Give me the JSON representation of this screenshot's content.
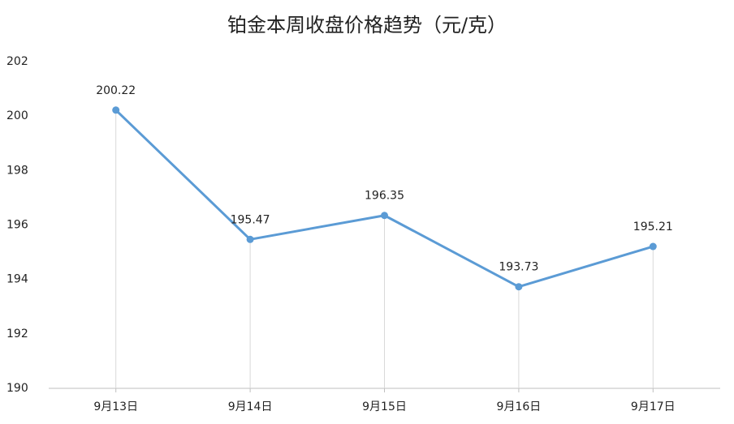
{
  "chart_data": {
    "type": "line",
    "title": "铂金本周收盘价格趋势（元/克）",
    "categories": [
      "9月13日",
      "9月14日",
      "9月15日",
      "9月16日",
      "9月17日"
    ],
    "values": [
      200.22,
      195.47,
      196.35,
      193.73,
      195.21
    ],
    "color": "#5b9bd5",
    "ylim": [
      190,
      202
    ],
    "yticks": [
      190,
      192,
      194,
      196,
      198,
      200,
      202
    ],
    "grid": false,
    "drop_lines": true,
    "data_labels": true
  }
}
